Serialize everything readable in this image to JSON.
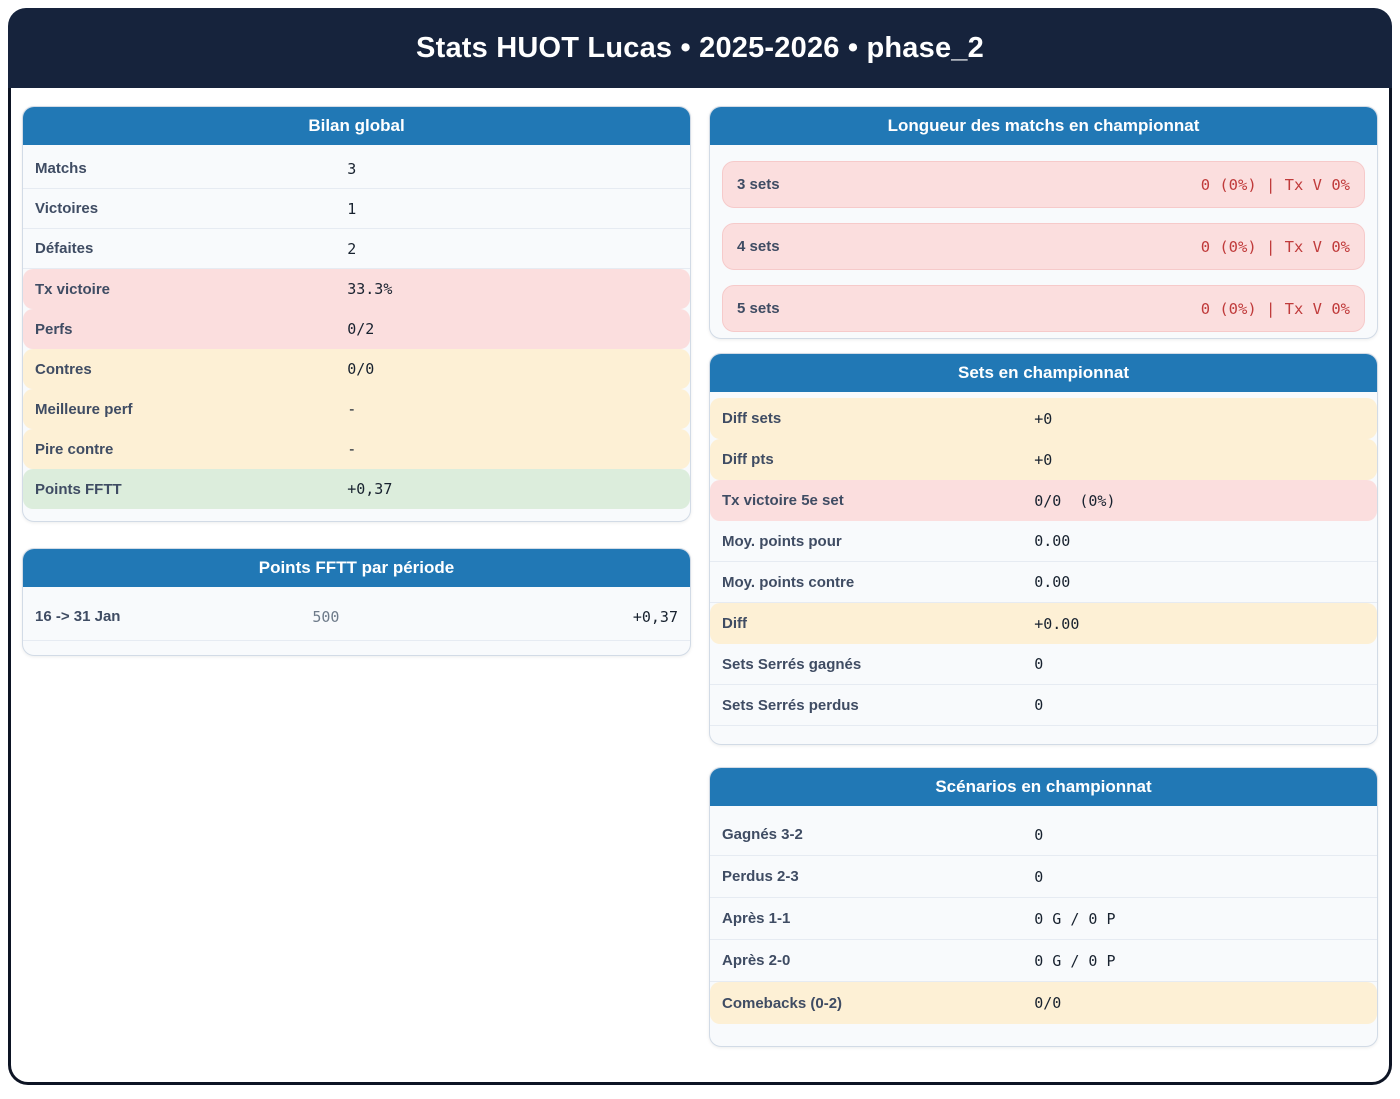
{
  "app": {
    "title": "Stats HUOT Lucas • 2025-2026 • phase_2"
  },
  "colors": {
    "navy": "#16233c",
    "blue": "#2178b5",
    "pink": "#fbdede",
    "cream": "#fdf0d5",
    "green": "#dceddc",
    "red": "#c03b3b"
  },
  "cards": {
    "bilan": {
      "title": "Bilan global",
      "rows": [
        {
          "label": "Matchs",
          "value": "3",
          "tone": "plain"
        },
        {
          "label": "Victoires",
          "value": "1",
          "tone": "plain"
        },
        {
          "label": "Défaites",
          "value": "2",
          "tone": "plain"
        },
        {
          "label": "Tx victoire",
          "value": "33.3%",
          "tone": "pink"
        },
        {
          "label": "Perfs",
          "value": "0/2",
          "tone": "pink"
        },
        {
          "label": "Contres",
          "value": "0/0",
          "tone": "cream"
        },
        {
          "label": "Meilleure perf",
          "value": "-",
          "tone": "cream"
        },
        {
          "label": "Pire contre",
          "value": "-",
          "tone": "cream"
        },
        {
          "label": "Points FFTT",
          "value": "+0,37",
          "tone": "green"
        }
      ]
    },
    "periode": {
      "title": "Points FFTT par période",
      "rows": [
        {
          "label": "16 -> 31 Jan",
          "points": "500",
          "delta": "+0,37"
        }
      ]
    },
    "longueur": {
      "title": "Longueur des matchs en championnat",
      "rows": [
        {
          "label": "3 sets",
          "value": "0 (0%) | Tx V 0%"
        },
        {
          "label": "4 sets",
          "value": "0 (0%) | Tx V 0%"
        },
        {
          "label": "5 sets",
          "value": "0 (0%) | Tx V 0%"
        }
      ]
    },
    "sets": {
      "title": "Sets en championnat",
      "rows": [
        {
          "label": "Diff sets",
          "value": "+0",
          "tone": "cream"
        },
        {
          "label": "Diff pts",
          "value": "+0",
          "tone": "cream"
        },
        {
          "label": "Tx victoire 5e set",
          "value": "0/0  (0%)",
          "tone": "pink"
        },
        {
          "label": "Moy. points pour",
          "value": "0.00",
          "tone": "plain"
        },
        {
          "label": "Moy. points contre",
          "value": "0.00",
          "tone": "plain"
        },
        {
          "label": "Diff",
          "value": "+0.00",
          "tone": "cream"
        },
        {
          "label": "Sets Serrés gagnés",
          "value": "0",
          "tone": "plain"
        },
        {
          "label": "Sets Serrés perdus",
          "value": "0",
          "tone": "plain"
        }
      ]
    },
    "scenarios": {
      "title": "Scénarios en championnat",
      "rows": [
        {
          "label": "Gagnés 3-2",
          "value": "0",
          "tone": "plain"
        },
        {
          "label": "Perdus 2-3",
          "value": "0",
          "tone": "plain"
        },
        {
          "label": "Après 1-1",
          "value": "0 G / 0 P",
          "tone": "plain"
        },
        {
          "label": "Après 2-0",
          "value": "0 G / 0 P",
          "tone": "plain"
        },
        {
          "label": "Comebacks (0-2)",
          "value": "0/0",
          "tone": "cream"
        }
      ]
    }
  }
}
